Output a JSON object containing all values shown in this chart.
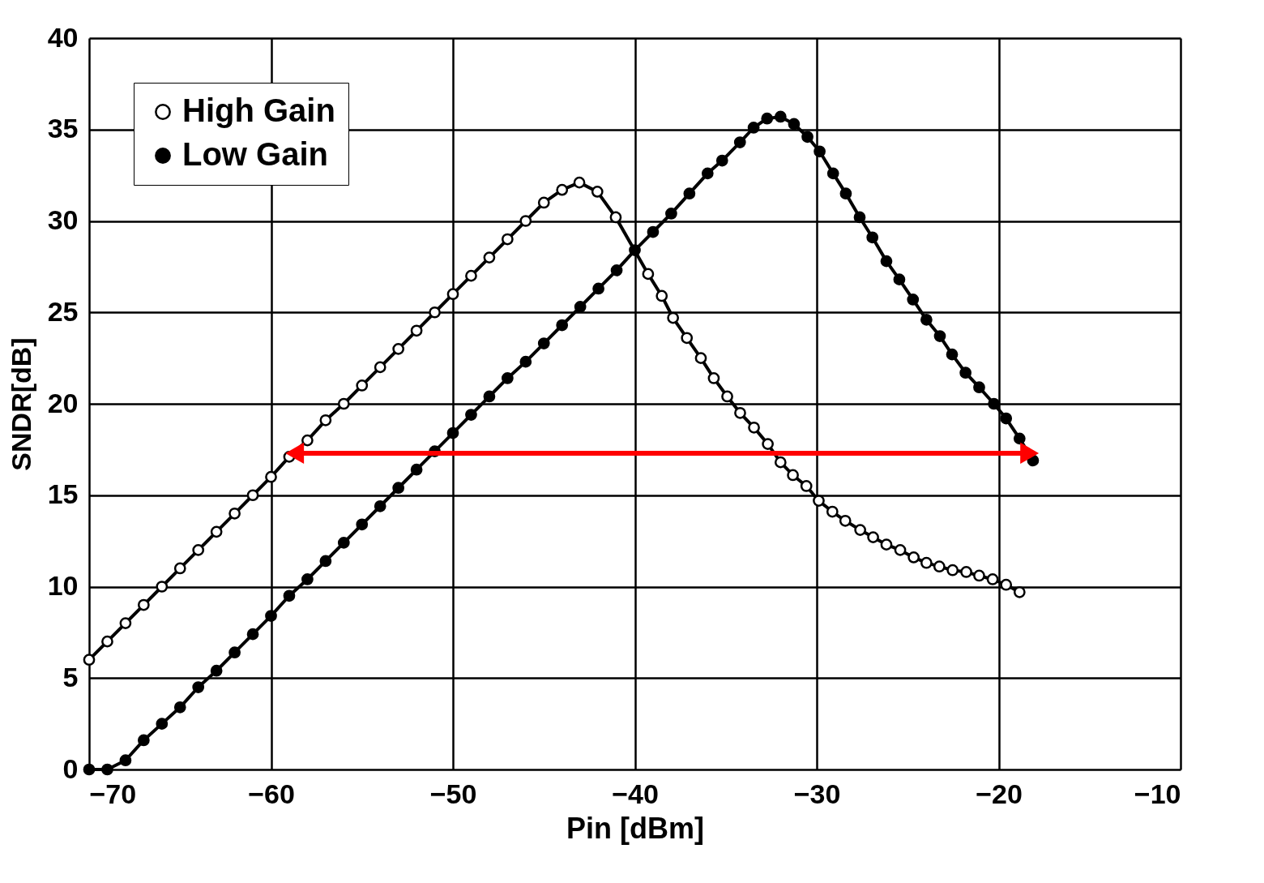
{
  "chart_data": {
    "type": "line",
    "xlabel": "Pin [dBm]",
    "ylabel": "SNDR[dB]",
    "xlim": [
      -70,
      -10
    ],
    "xticks": [
      -70,
      -60,
      -50,
      -40,
      -30,
      -20,
      -10
    ],
    "ylim": [
      0,
      40
    ],
    "yticks": [
      0,
      5,
      10,
      15,
      20,
      25,
      30,
      35,
      40
    ],
    "grid": true,
    "legend": "top left",
    "marker": "circle",
    "line_style": "solid",
    "series": [
      {
        "name": "High Gain",
        "color": "#000000",
        "colors": [
          "#ffffff",
          "#ffffff",
          "#ffffff",
          "#ffffff",
          "#ffffff",
          "#ffffff",
          "#ffffff",
          "#ffffff",
          "#ffffff",
          "#ffffff",
          "#ffffff",
          "#ffffff",
          "#ffffff",
          "#ffffff",
          "#ffffff",
          "#ffffff",
          "#ffffff",
          "#ffffff",
          "#ffffff",
          "#ffffff",
          "#ffffff",
          "#ffffff",
          "#ffffff",
          "#ffffff",
          "#ffffff",
          "#ffffff",
          "#ffffff",
          "#ffffff",
          "#ffffff",
          "#ffffff",
          "#ffffff",
          "#ffffff",
          "#ffffff",
          "#ffffff",
          "#ffffff",
          "#ffffff",
          "#ffffff",
          "#ffffff",
          "#ffffff",
          "#ffffff",
          "#ffffff",
          "#ffffff",
          "#ffffff",
          "#ffffff",
          "#ffffff",
          "#ffffff",
          "#ffffff",
          "#ffffff",
          "#ffffff",
          "#ffffff",
          "#ffffff",
          "#ffffff",
          "#ffffff",
          "#ffffff",
          "#ffffff",
          "#ffffff",
          "#ffffff",
          "#ffffff",
          "#ffffff"
        ],
        "x": [
          -70,
          -69,
          -68,
          -67,
          -66,
          -65,
          -64,
          -63,
          -62,
          -61,
          -60,
          -59,
          -58,
          -57,
          -56,
          -55,
          -54,
          -53,
          -52,
          -51,
          -50,
          -49,
          -48,
          -47,
          -46,
          -45,
          -44,
          -43.05,
          -42.06,
          -41.05,
          -39.27,
          -38.52,
          -37.9,
          -37.14,
          -36.37,
          -35.66,
          -34.92,
          -34.21,
          -33.45,
          -32.69,
          -31.99,
          -31.31,
          -30.57,
          -29.89,
          -29.14,
          -28.43,
          -27.61,
          -26.9,
          -26.17,
          -25.41,
          -24.67,
          -23.97,
          -23.26,
          -22.53,
          -21.78,
          -21.07,
          -20.33,
          -19.59,
          -18.85
        ],
        "values": [
          6,
          7,
          8,
          9,
          10,
          11,
          12,
          13,
          14,
          15,
          16,
          17.1,
          18,
          19.1,
          20,
          21,
          22,
          23,
          24,
          25,
          26,
          27,
          28,
          29,
          30,
          31,
          31.7,
          32.1,
          31.6,
          30.2,
          27.1,
          25.9,
          24.7,
          23.6,
          22.5,
          21.4,
          20.4,
          19.5,
          18.7,
          17.8,
          16.8,
          16.1,
          15.5,
          14.7,
          14.1,
          13.6,
          13.1,
          12.7,
          12.3,
          12,
          11.6,
          11.3,
          11.1,
          10.9,
          10.8,
          10.6,
          10.4,
          10.1,
          9.7
        ]
      },
      {
        "name": "Low Gain",
        "color": "#000000",
        "x": [
          -70,
          -69,
          -68,
          -67,
          -66,
          -65,
          -64,
          -63,
          -62,
          -61,
          -60,
          -59,
          -58,
          -57,
          -56,
          -55,
          -54,
          -53,
          -52,
          -51,
          -50,
          -49,
          -48,
          -47,
          -46,
          -45,
          -44,
          -43,
          -42,
          -41,
          -40,
          -39,
          -38,
          -37,
          -36,
          -35.2,
          -34.22,
          -33.47,
          -32.73,
          -31.99,
          -31.25,
          -30.51,
          -29.84,
          -29.1,
          -28.4,
          -27.64,
          -26.94,
          -26.17,
          -25.46,
          -24.71,
          -23.97,
          -23.23,
          -22.56,
          -21.82,
          -21.07,
          -20.26,
          -19.59,
          -18.85,
          -18.11
        ],
        "values": [
          0,
          0,
          0.5,
          1.6,
          2.5,
          3.4,
          4.5,
          5.4,
          6.4,
          7.4,
          8.4,
          9.5,
          10.4,
          11.4,
          12.4,
          13.4,
          14.4,
          15.4,
          16.4,
          17.4,
          18.4,
          19.4,
          20.4,
          21.4,
          22.3,
          23.3,
          24.3,
          25.3,
          26.3,
          27.3,
          28.4,
          29.4,
          30.4,
          31.5,
          32.6,
          33.3,
          34.3,
          35.1,
          35.6,
          35.7,
          35.3,
          34.6,
          33.8,
          32.6,
          31.5,
          30.2,
          29.1,
          27.8,
          26.8,
          25.7,
          24.6,
          23.7,
          22.7,
          21.7,
          20.9,
          20,
          19.2,
          18.1,
          16.9
        ]
      },
      {
        "type": "line",
        "marker": "triangle",
        "color": "#ff0000",
        "x": [
          -58.7,
          -18.3
        ],
        "values": [
          17.3,
          17.3
        ]
      }
    ]
  }
}
